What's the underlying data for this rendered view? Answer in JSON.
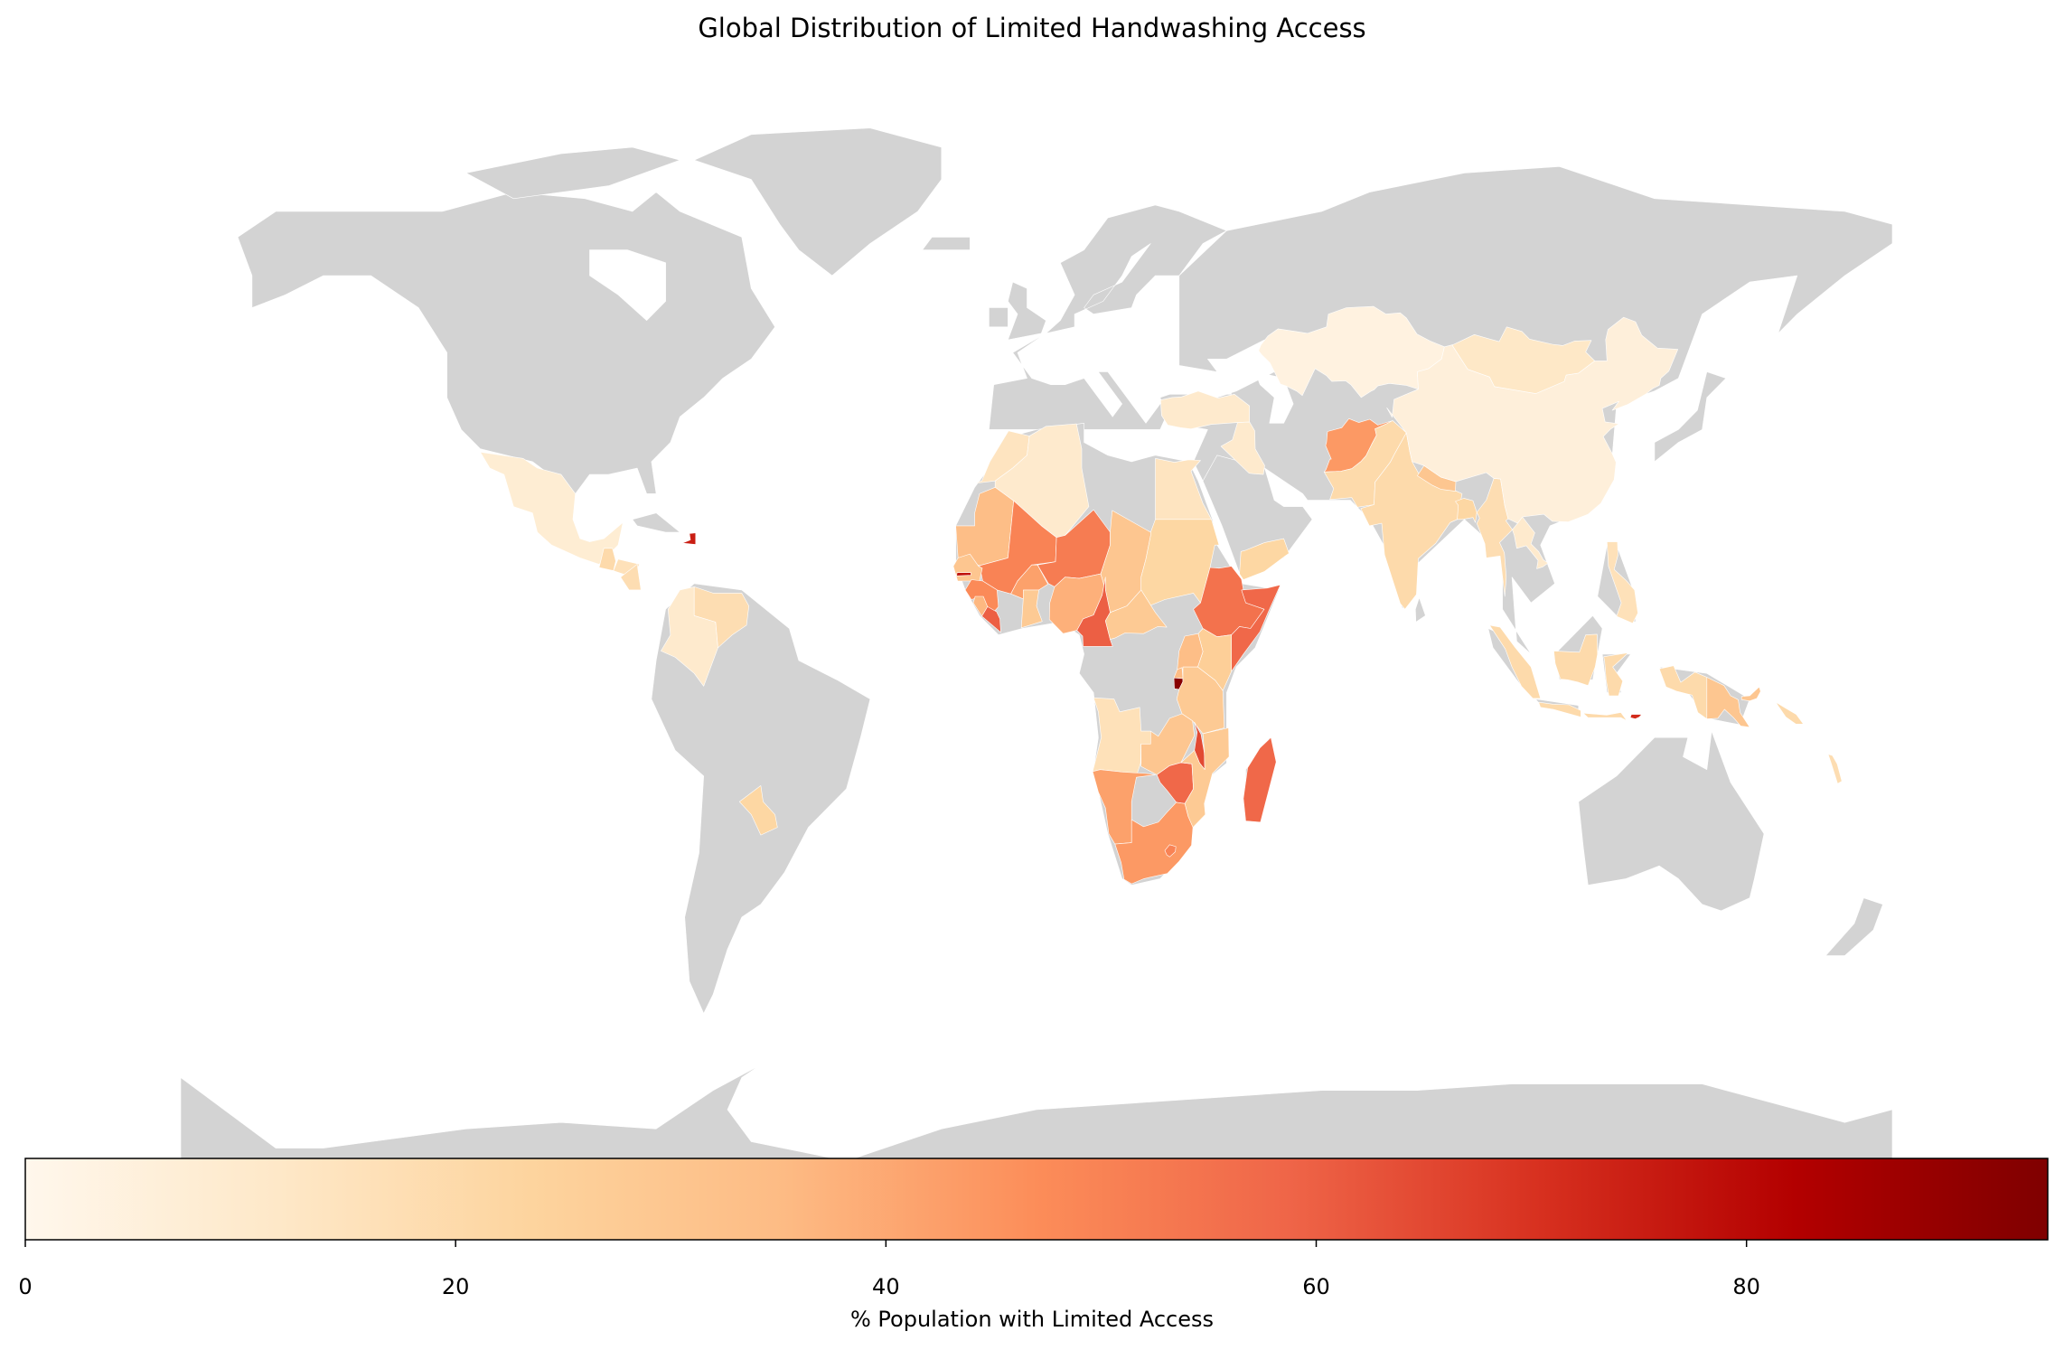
{
  "title": "Global Distribution of Limited Handwashing Access",
  "colorbar": {
    "label": "% Population with Limited Access",
    "ticks": [
      "0",
      "20",
      "40",
      "60",
      "80"
    ],
    "tick_values": [
      0,
      20,
      40,
      60,
      80
    ],
    "min": 0,
    "max": 94,
    "colormap": "OrRd",
    "stops": [
      "#fff7ec",
      "#fee8c8",
      "#fdd49e",
      "#fdbb84",
      "#fc8d59",
      "#ef6548",
      "#d7301f",
      "#b30000",
      "#7f0000"
    ]
  },
  "no_data_color": "#d3d3d3",
  "chart_data": {
    "type": "choropleth",
    "title": "Global Distribution of Limited Handwashing Access",
    "value_label": "% Population with Limited Access",
    "range": [
      0,
      94
    ],
    "regions": [
      {
        "name": "Mexico",
        "value": 8
      },
      {
        "name": "Guatemala",
        "value": 20
      },
      {
        "name": "Honduras",
        "value": 16
      },
      {
        "name": "Nicaragua",
        "value": 18
      },
      {
        "name": "Haiti",
        "value": 75
      },
      {
        "name": "Colombia",
        "value": 10
      },
      {
        "name": "Venezuela",
        "value": 18
      },
      {
        "name": "Paraguay",
        "value": 22
      },
      {
        "name": "Morocco",
        "value": 14
      },
      {
        "name": "Algeria",
        "value": 10
      },
      {
        "name": "Egypt",
        "value": 14
      },
      {
        "name": "Mauritania",
        "value": 34
      },
      {
        "name": "Mali",
        "value": 50
      },
      {
        "name": "Niger",
        "value": 52
      },
      {
        "name": "Chad",
        "value": 30
      },
      {
        "name": "Sudan",
        "value": 22
      },
      {
        "name": "Senegal",
        "value": 30
      },
      {
        "name": "Gambia",
        "value": 78
      },
      {
        "name": "Guinea",
        "value": 48
      },
      {
        "name": "Sierra Leone",
        "value": 36
      },
      {
        "name": "Liberia",
        "value": 60
      },
      {
        "name": "Burkina Faso",
        "value": 42
      },
      {
        "name": "Ghana",
        "value": 28
      },
      {
        "name": "Nigeria",
        "value": 38
      },
      {
        "name": "Cameroon",
        "value": 60
      },
      {
        "name": "Central African Republic",
        "value": 28
      },
      {
        "name": "Ethiopia",
        "value": 55
      },
      {
        "name": "Somalia",
        "value": 58
      },
      {
        "name": "Yemen",
        "value": 22
      },
      {
        "name": "Kenya",
        "value": 26
      },
      {
        "name": "Uganda",
        "value": 34
      },
      {
        "name": "Rwanda",
        "value": 35
      },
      {
        "name": "Burundi",
        "value": 92
      },
      {
        "name": "Tanzania",
        "value": 28
      },
      {
        "name": "Angola",
        "value": 16
      },
      {
        "name": "Zambia",
        "value": 30
      },
      {
        "name": "Malawi",
        "value": 65
      },
      {
        "name": "Zimbabwe",
        "value": 58
      },
      {
        "name": "Mozambique",
        "value": 28
      },
      {
        "name": "Madagascar",
        "value": 58
      },
      {
        "name": "Namibia",
        "value": 42
      },
      {
        "name": "South Africa",
        "value": 44
      },
      {
        "name": "Lesotho",
        "value": 50
      },
      {
        "name": "Iraq",
        "value": 10
      },
      {
        "name": "Turkey",
        "value": 10
      },
      {
        "name": "Afghanistan",
        "value": 44
      },
      {
        "name": "Pakistan",
        "value": 20
      },
      {
        "name": "India",
        "value": 20
      },
      {
        "name": "Nepal",
        "value": 30
      },
      {
        "name": "Bangladesh",
        "value": 22
      },
      {
        "name": "Myanmar",
        "value": 18
      },
      {
        "name": "Laos",
        "value": 10
      },
      {
        "name": "Kazakhstan",
        "value": 4
      },
      {
        "name": "China",
        "value": 6
      },
      {
        "name": "Mongolia",
        "value": 12
      },
      {
        "name": "Philippines",
        "value": 16
      },
      {
        "name": "Indonesia",
        "value": 20
      },
      {
        "name": "Timor-Leste",
        "value": 72
      },
      {
        "name": "Papua New Guinea",
        "value": 30
      },
      {
        "name": "Solomon Islands",
        "value": 20
      },
      {
        "name": "Vanuatu",
        "value": 18
      }
    ]
  }
}
